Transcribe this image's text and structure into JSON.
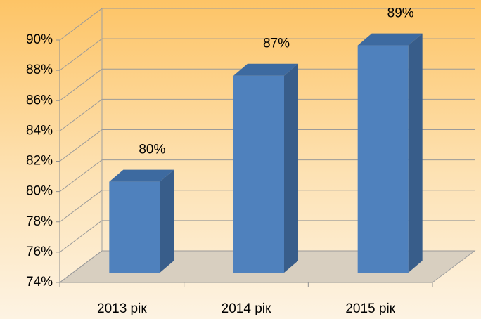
{
  "chart_data": {
    "type": "bar3d",
    "categories": [
      "2013 рік",
      "2014 рік",
      "2015 рік"
    ],
    "values": [
      80,
      87,
      89
    ],
    "value_labels": [
      "80%",
      "87%",
      "89%"
    ],
    "color": "#4f81bd",
    "ylim": [
      74,
      90
    ],
    "yticks": [
      {
        "value": 74,
        "label": "74%"
      },
      {
        "value": 76,
        "label": "76%"
      },
      {
        "value": 78,
        "label": "78%"
      },
      {
        "value": 80,
        "label": "80%"
      },
      {
        "value": 82,
        "label": "82%"
      },
      {
        "value": 84,
        "label": "84%"
      },
      {
        "value": 86,
        "label": "86%"
      },
      {
        "value": 88,
        "label": "88%"
      },
      {
        "value": 90,
        "label": "90%"
      }
    ],
    "grid": true
  }
}
